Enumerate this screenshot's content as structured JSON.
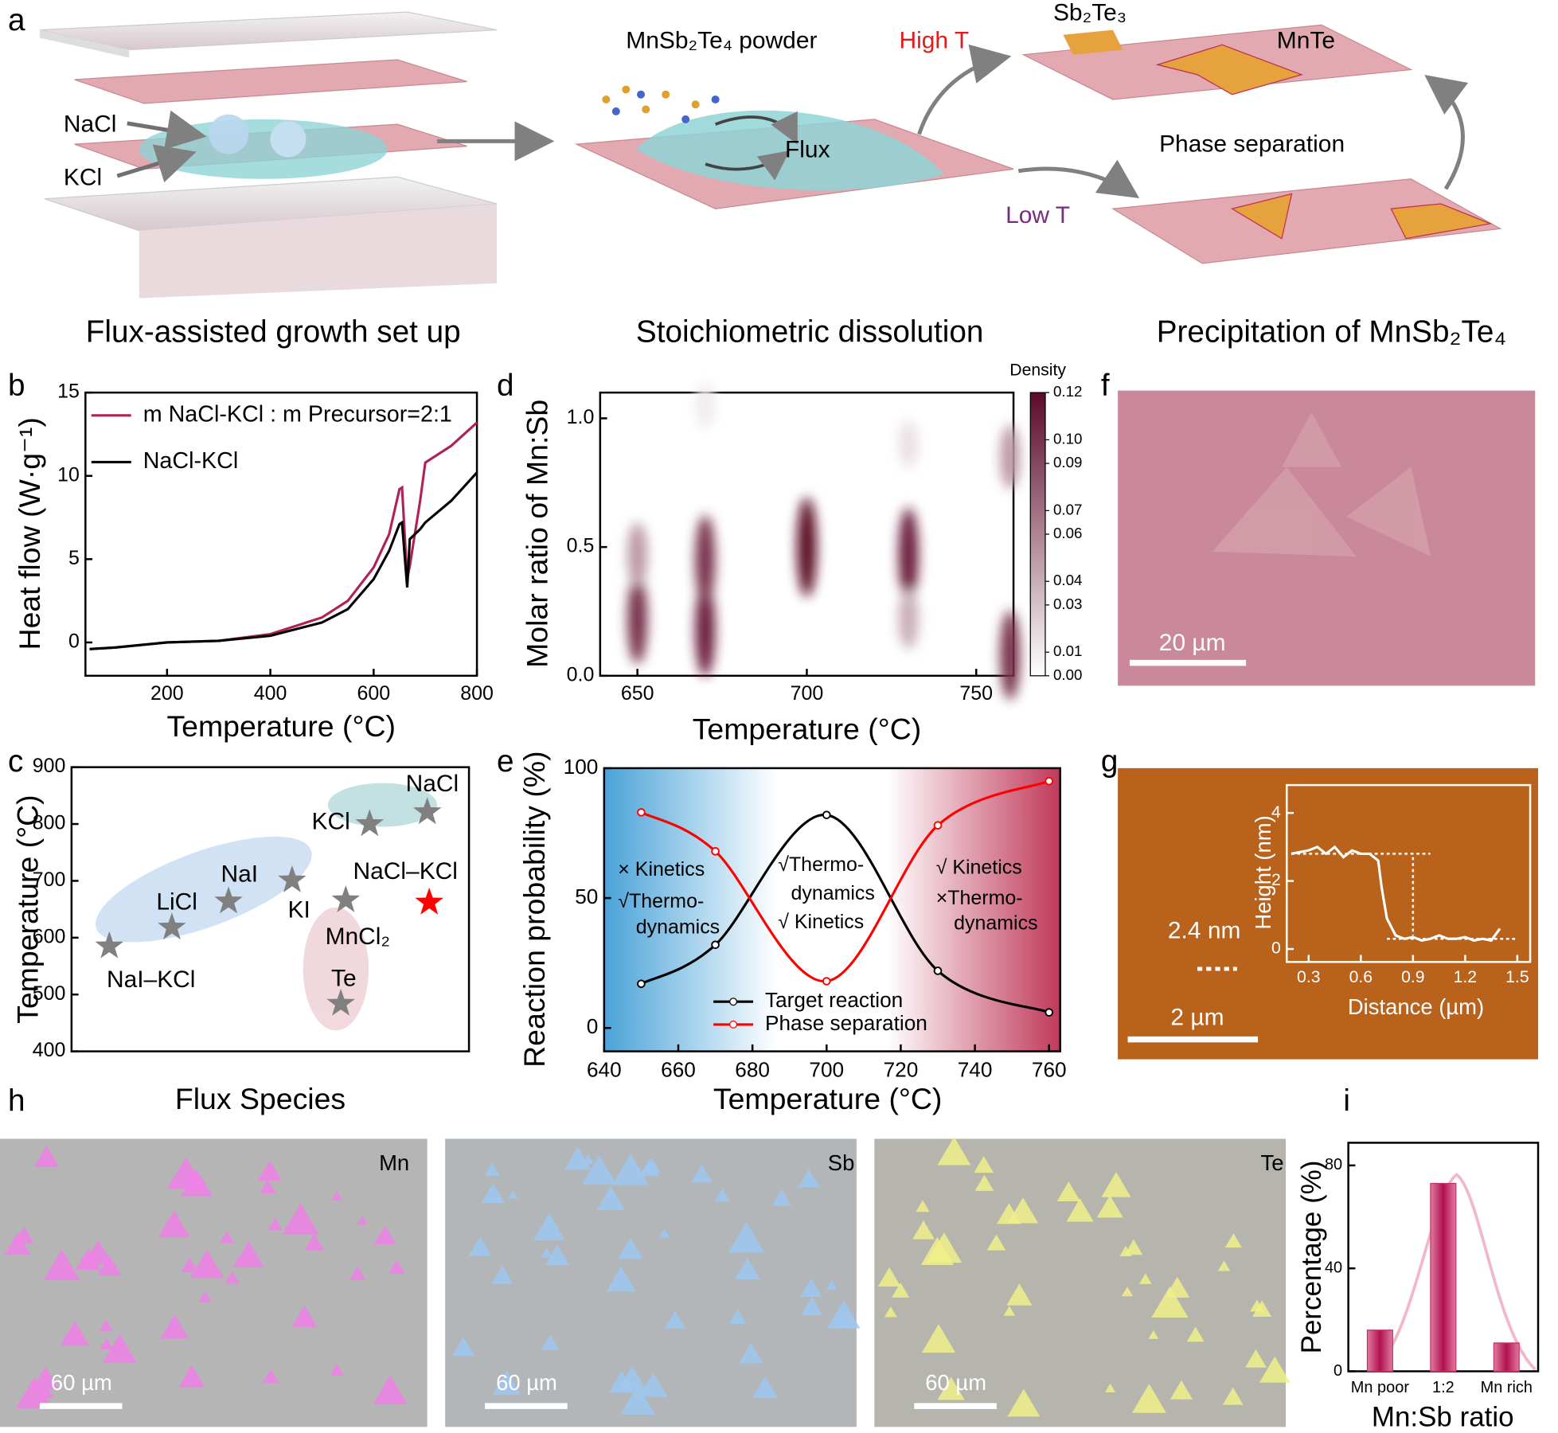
{
  "panel_labels": [
    "a",
    "b",
    "c",
    "d",
    "e",
    "f",
    "g",
    "h",
    "i"
  ],
  "schematic": {
    "nacl": "NaCl",
    "kcl": "KCl",
    "powder": "MnSb₂Te₄ powder",
    "flux": "Flux",
    "high_t": "High T",
    "low_t": "Low T",
    "sb2te3": "Sb₂Te₃",
    "mnte": "MnTe",
    "phase_sep": "Phase separation",
    "caption_1": "Flux-assisted growth set up",
    "caption_2": "Stoichiometric dissolution",
    "caption_3": "Precipitation of MnSb₂Te₄"
  },
  "images": {
    "f_scale": "20 µm",
    "g_scale": "2 µm",
    "g_step": "2.4 nm",
    "h": [
      {
        "element": "Mn",
        "scale": "60 µm"
      },
      {
        "element": "Sb",
        "scale": "60 µm"
      },
      {
        "element": "Te",
        "scale": "60 µm"
      }
    ]
  },
  "chart_data": [
    {
      "type": "line",
      "xlabel": "Temperature (°C)",
      "ylabel": "Heat flow (W·g⁻¹)",
      "x": [
        50,
        100,
        200,
        300,
        400,
        500,
        550,
        600,
        630,
        650,
        655,
        665,
        670,
        690,
        700,
        750,
        800
      ],
      "series": [
        {
          "name": "m NaCl-KCl : m Precursor=2:1",
          "color": "#b0215a",
          "values": [
            -0.4,
            -0.3,
            0,
            0.1,
            0.5,
            1.5,
            2.5,
            4.5,
            6.5,
            9.2,
            9.3,
            3.8,
            4.6,
            8.5,
            10.8,
            11.8,
            13.2
          ]
        },
        {
          "name": "NaCl-KCl",
          "color": "#000000",
          "values": [
            -0.4,
            -0.3,
            0,
            0.1,
            0.4,
            1.2,
            2,
            3.8,
            5.5,
            7.1,
            7.2,
            3.3,
            6.2,
            6.8,
            7.2,
            8.5,
            10.2
          ]
        }
      ],
      "xlim": [
        42,
        800
      ],
      "ylim": [
        -2,
        15
      ],
      "xticks": [
        200,
        400,
        600,
        800
      ],
      "yticks": [
        0,
        5,
        10,
        15
      ]
    },
    {
      "type": "scatter",
      "xlabel": "Flux Species",
      "ylabel": "Temperature (°C)",
      "categories": [
        "NaI–KCl",
        "LiCl",
        "NaI",
        "KI",
        "MnCl₂",
        "Te",
        "KCl",
        "NaCl",
        "NaCl–KCl"
      ],
      "values": [
        585,
        618,
        664,
        701,
        666,
        484,
        800,
        821,
        662
      ],
      "colors": [
        "#808080",
        "#808080",
        "#808080",
        "#808080",
        "#808080",
        "#808080",
        "#808080",
        "#808080",
        "#ff0000"
      ],
      "ylim": [
        400,
        900
      ],
      "yticks": [
        400,
        500,
        600,
        700,
        800,
        900
      ]
    },
    {
      "type": "density",
      "xlabel": "Temperature (°C)",
      "ylabel": "Molar ratio of Mn:Sb",
      "colorbar_title": "Density",
      "x": [
        650,
        650,
        670,
        670,
        700,
        730,
        730,
        730,
        760,
        760,
        670
      ],
      "y": [
        0.22,
        0.47,
        0.18,
        0.45,
        0.5,
        0.47,
        0.22,
        0.9,
        0.08,
        0.85,
        1.05
      ],
      "density": [
        0.1,
        0.05,
        0.11,
        0.1,
        0.12,
        0.11,
        0.04,
        0.015,
        0.1,
        0.05,
        0.01
      ],
      "clim": [
        0,
        0.12
      ],
      "low_color": "#ffffff",
      "high_color": "#5c0a28",
      "cticks": [
        {
          "value": 0,
          "label": "0.00"
        },
        {
          "value": 0.01,
          "label": "0.01"
        },
        {
          "value": 0.03,
          "label": "0.03"
        },
        {
          "value": 0.04,
          "label": "0.04"
        },
        {
          "value": 0.06,
          "label": "0.06"
        },
        {
          "value": 0.07,
          "label": "0.07"
        },
        {
          "value": 0.09,
          "label": "0.09"
        },
        {
          "value": 0.1,
          "label": "0.10"
        },
        {
          "value": 0.12,
          "label": "0.12"
        }
      ],
      "xlim": [
        639,
        761
      ],
      "ylim": [
        0,
        1.1
      ],
      "xticks": [
        650,
        700,
        750
      ],
      "yticks": [
        {
          "value": 0,
          "label": "0.0"
        },
        0.5,
        {
          "value": 1,
          "label": "1.0"
        }
      ]
    },
    {
      "type": "line",
      "smooth": true,
      "markers": true,
      "xlabel": "Temperature (°C)",
      "ylabel": "Reaction probability (%)",
      "x": [
        650,
        670,
        700,
        730,
        760
      ],
      "series": [
        {
          "name": "Target reaction",
          "color": "#000000",
          "values": [
            17,
            32,
            82,
            22,
            6
          ]
        },
        {
          "name": "Phase separation",
          "color": "#ff0000",
          "values": [
            83,
            68,
            18,
            78,
            95
          ]
        }
      ],
      "annotations": [
        "× Kinetics",
        "√Thermo-",
        "dynamics",
        "√Thermo-",
        "dynamics",
        "√ Kinetics",
        "√ Kinetics",
        "×Thermo-",
        "dynamics"
      ],
      "xlim": [
        640,
        763
      ],
      "ylim": [
        -9,
        100
      ],
      "xticks": [
        640,
        660,
        680,
        700,
        720,
        740,
        760
      ],
      "yticks": [
        0,
        50,
        100
      ]
    },
    {
      "type": "line",
      "axis_color": "#ffffff",
      "xlabel": "Distance (µm)",
      "ylabel": "Height (nm)",
      "x": [
        0.2,
        0.3,
        0.35,
        0.4,
        0.45,
        0.5,
        0.55,
        0.6,
        0.65,
        0.7,
        0.72,
        0.75,
        0.8,
        0.85,
        0.9,
        0.95,
        1.0,
        1.05,
        1.1,
        1.15,
        1.2,
        1.25,
        1.3,
        1.35,
        1.4
      ],
      "series": [
        {
          "color": "#ffffff",
          "values": [
            2.8,
            2.9,
            3.0,
            2.8,
            3.0,
            2.7,
            2.9,
            2.8,
            2.8,
            2.6,
            1.8,
            0.9,
            0.4,
            0.3,
            0.35,
            0.25,
            0.3,
            0.4,
            0.3,
            0.3,
            0.35,
            0.25,
            0.3,
            0.25,
            0.6
          ]
        }
      ],
      "xlim": [
        0.174,
        1.574
      ],
      "ylim": [
        -0.38,
        4.82
      ],
      "xticks": [
        0.3,
        0.6,
        0.9,
        1.2,
        1.5
      ],
      "yticks": [
        0,
        2,
        4
      ]
    },
    {
      "type": "bar",
      "xlabel": "Mn:Sb ratio",
      "ylabel": "Percentage (%)",
      "categories": [
        "Mn poor",
        "1:2",
        "Mn rich"
      ],
      "values": [
        16,
        73,
        11
      ],
      "color": "#c2306a",
      "ylim": [
        0,
        88.8
      ],
      "yticks": [
        0,
        40,
        80
      ]
    }
  ]
}
